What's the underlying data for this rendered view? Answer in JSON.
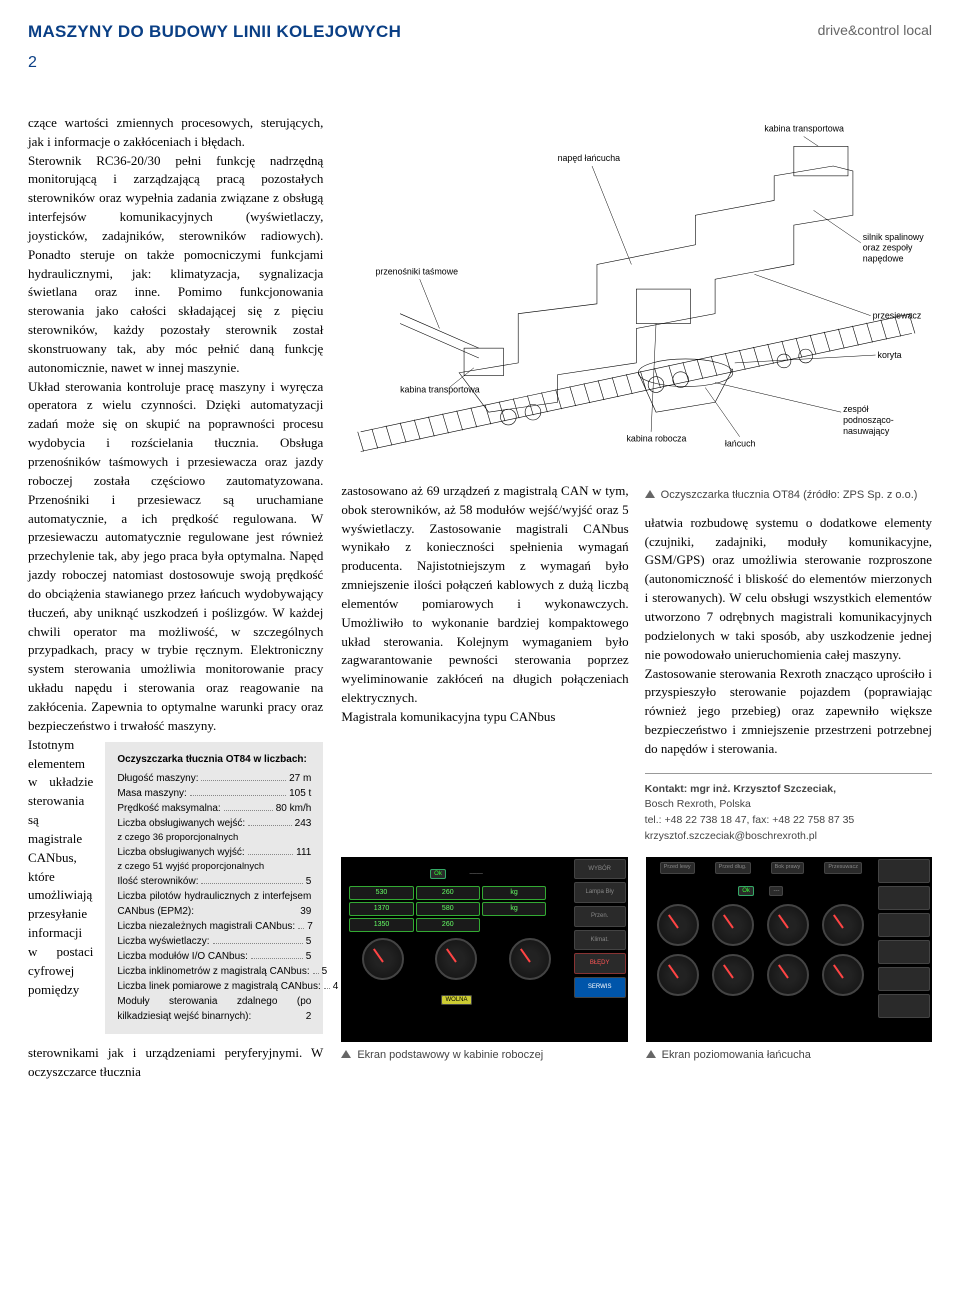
{
  "header": {
    "section_title": "MASZYNY DO BUDOWY LINII KOLEJOWYCH",
    "tagline": "drive&control local",
    "page_number": "2"
  },
  "column1": {
    "p1": "czące wartości zmiennych procesowych, sterujących, jak i informacje o zakłóceniach i błędach.",
    "p2": "Sterownik RC36-20/30 pełni funkcję nadrzędną monitorującą i zarządzającą pracą pozostałych sterowników oraz wypełnia zadania związane z obsługą interfejsów komunikacyjnych (wyświetlaczy, joysticków, zadajników, sterowników radiowych). Ponadto steruje on także pomocniczymi funkcjami hydraulicznymi, jak: klimatyzacja, sygnalizacja świetlana oraz inne. Pomimo funkcjonowania sterowania jako całości składającej się z pięciu sterowników, każdy pozostały sterownik został skonstruowany tak, aby móc pełnić daną funkcję autonomicznie, nawet w innej maszynie.",
    "p3": "Układ sterowania kontroluje pracę maszyny i wyręcza operatora z wielu czynności. Dzięki automatyzacji zadań może się on skupić na poprawności procesu wydobycia i rozścielania tłucznia. Obsługa przenośników taśmowych i przesiewacza oraz jazdy roboczej została częściowo zautomatyzowana. Przenośniki i przesiewacz są uruchamiane automatycznie, a ich prędkość regulowana. W przesiewaczu automatycznie regulowane jest również przechylenie tak, aby jego praca była optymalna. Napęd jazdy roboczej natomiast dostosowuje swoją prędkość do obciążenia stawianego przez łańcuch wydobywający tłuczeń, aby uniknąć uszkodzeń i poślizgów. W każdej chwili operator ma możliwość, w szczególnych przypadkach, pracy w trybie ręcznym. Elektroniczny system sterowania umożliwia monitorowanie pracy układu napędu i sterowania oraz reagowanie na zakłócenia. Zapewnia to optymalne warunki pracy oraz bezpieczeństwo i trwałość maszyny.",
    "p4": "Istotnym elementem w układzie sterowania są magistrale CANbus, które  umożliwiają przesyłanie informacji w postaci cyfrowej pomiędzy sterownikami jak i urządzeniami peryferyjnymi. W oczyszczarce tłucznia"
  },
  "stats": {
    "title": "Oczyszczarka tłucznia OT84 w liczbach:",
    "rows": [
      {
        "label": "Długość maszyny:",
        "value": "27 m"
      },
      {
        "label": "Masa maszyny:",
        "value": "105 t"
      },
      {
        "label": "Prędkość maksymalna:",
        "value": "80 km/h"
      },
      {
        "label": "Liczba obsługiwanych wejść:",
        "value": "243"
      },
      {
        "sub": "z czego 36 proporcjonalnych"
      },
      {
        "label": "Liczba obsługiwanych wyjść:",
        "value": "111"
      },
      {
        "sub": "z czego 51 wyjść proporcjonalnych"
      },
      {
        "label": "Ilość sterowników:",
        "value": "5"
      },
      {
        "label_multi": "Liczba pilotów hydraulicznych z interfejsem CANbus (EPM2):",
        "value": "39"
      },
      {
        "label": "Liczba niezależnych magistrali CANbus:",
        "value": "7"
      },
      {
        "label": "Liczba wyświetlaczy:",
        "value": "5"
      },
      {
        "label": "Liczba modułów I/O CANbus:",
        "value": "5"
      },
      {
        "label": "Liczba inklinometrów z magistralą CANbus:",
        "value": "5"
      },
      {
        "label": "Liczba linek pomiarowe z magistralą CANbus:",
        "value": "4"
      },
      {
        "label_multi": "Moduły sterowania zdalnego (po kilkadziesiąt wejść binarnych):",
        "value": "2"
      }
    ]
  },
  "diagram": {
    "labels": {
      "kabina_transportowa_top": "kabina transportowa",
      "naped_lancucha": "napęd łańcucha",
      "przenosniki_tasmowe": "przenośniki taśmowe",
      "kabina_transportowa_left": "kabina transportowa",
      "kabina_robocza": "kabina robocza",
      "lancuch": "łańcuch",
      "silnik_spalinowy": "silnik spalinowy oraz zespoły napędowe",
      "przesiewacz": "przesiewacz",
      "koryta": "koryta",
      "zespol_podnoszaco": "zespół podnosząco-nasuwający"
    },
    "caption": "Oczyszczarka tłucznia OT84 (źródło: ZPS Sp. z o.o.)"
  },
  "column2": {
    "p1": "zastosowano aż 69 urządzeń z magistralą CAN w tym, obok sterowników, aż 58 modułów wejść/wyjść oraz 5 wyświetlaczy. Zastosowanie magistrali CANbus wynikało z konieczności spełnienia wymagań producenta. Najistotniejszym z wymagań było zmniejszenie ilości połączeń kablowych z dużą liczbą elementów pomiarowych i wykonawczych. Umożliwiło to wykonanie bardziej kompaktowego układ sterowania. Kolejnym wymaganiem było zagwarantowanie pewności sterowania poprzez wyeliminowanie zakłóceń na długich połączeniach elektrycznych.",
    "p2": "Magistrala komunikacyjna typu CANbus"
  },
  "column3": {
    "p1": "ułatwia rozbudowę systemu o dodatkowe elementy (czujniki, zadajniki, moduły komunikacyjne, GSM/GPS) oraz umożliwia sterowanie rozproszone (autonomiczność i bliskość do elementów mierzonych i sterowanych). W celu obsługi wszystkich elementów utworzono 7 odrębnych magistrali komunikacyjnych podzielonych w taki sposób, aby uszkodzenie jednej nie powodowało unieruchomienia całej maszyny.",
    "p2": "Zastosowanie sterowania Rexroth znacząco uprościło i przyspieszyło sterowanie pojazdem (poprawiając również jego przebieg) oraz zapewniło większe bezpieczeństwo i zmniejszenie przestrzeni potrzebnej do napędów i sterowania."
  },
  "contact": {
    "line1": "Kontakt: mgr inż. Krzysztof Szczeciak,",
    "line2": "Bosch Rexroth, Polska",
    "line3": "tel.: +48 22 738 18 47, fax: +48 22 758 87 35",
    "line4": "krzysztof.szczeciak@boschrexroth.pl"
  },
  "screens": {
    "left": {
      "caption": "Ekran podstawowy w kabinie roboczej",
      "side_buttons": [
        "WYBÓR",
        "Lampa Bły",
        "Przen.",
        "Klimat.",
        "BŁĘDY",
        "SERWIS"
      ],
      "val_boxes": [
        "530",
        "260",
        "kg",
        "1370",
        "580",
        "kg",
        "1350",
        "260"
      ],
      "ok": "Ok",
      "nc": "–––",
      "wolna": "WOLNA"
    },
    "right": {
      "caption": "Ekran poziomowania łańcucha",
      "headers": [
        "Przed lewy",
        "Przed dług.",
        "Bok prawy",
        "Przesuwacz"
      ],
      "ok": "Ok",
      "nc": "---"
    }
  },
  "colors": {
    "title_color": "#0a3f85",
    "tagline_color": "#666666",
    "stats_bg": "#e8e8e8",
    "screen_bg": "#000000",
    "green": "#33ff33",
    "red": "#ff5555"
  }
}
